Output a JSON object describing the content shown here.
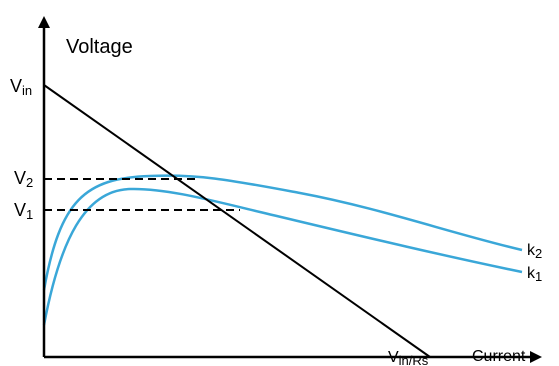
{
  "axes": {
    "y_title": "Voltage",
    "x_title": "Current"
  },
  "labels": {
    "vin_main": "V",
    "vin_sub": "in",
    "v2_main": "V",
    "v2_sub": "2",
    "v1_main": "V",
    "v1_sub": "1",
    "vinrs_main": "V",
    "vinrs_sub": "in/Rs",
    "k2_main": "k",
    "k2_sub": "2",
    "k1_main": "k",
    "k1_sub": "1"
  },
  "colors": {
    "axis": "#000000",
    "load_line": "#000000",
    "curve": "#3aa7d8",
    "dashed": "#000000"
  }
}
